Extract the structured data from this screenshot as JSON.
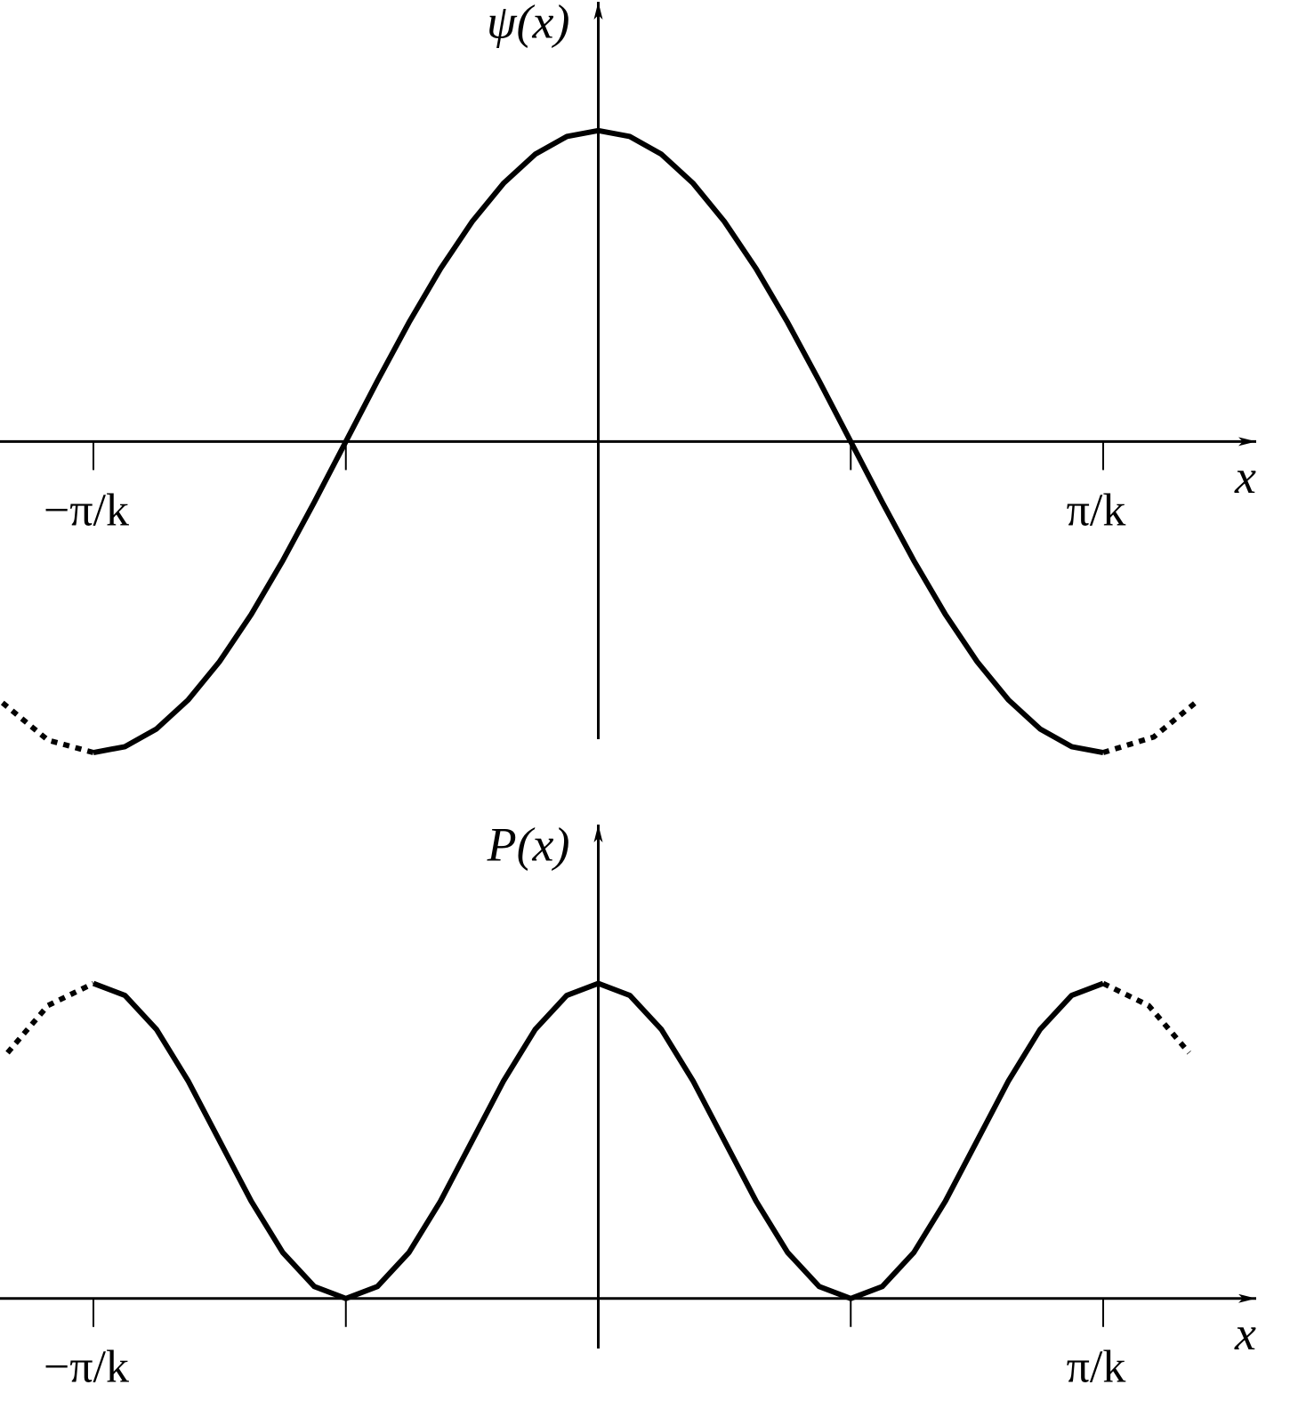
{
  "chart_data": [
    {
      "type": "line",
      "y_label": "ψ(x)",
      "x_label": "x",
      "xlim": [
        -1.185,
        1.37
      ],
      "ylim": [
        -1.1,
        1.42
      ],
      "xticks": [
        {
          "value": -1,
          "label": "−π/k"
        },
        {
          "value": 1,
          "label": "π/k"
        }
      ],
      "xticks_minor": [
        -0.5,
        0.5
      ],
      "series": [
        {
          "color": "#000000",
          "line_style": "solid",
          "x": [
            -1,
            -0.9375,
            -0.875,
            -0.8125,
            -0.75,
            -0.6875,
            -0.625,
            -0.5625,
            -0.5,
            -0.4375,
            -0.375,
            -0.3125,
            -0.25,
            -0.1875,
            -0.125,
            -0.0625,
            0,
            0.0625,
            0.125,
            0.1875,
            0.25,
            0.3125,
            0.375,
            0.4375,
            0.5,
            0.5625,
            0.625,
            0.6875,
            0.75,
            0.8125,
            0.875,
            0.9375,
            1
          ],
          "values": [
            -1,
            -0.981,
            -0.924,
            -0.831,
            -0.707,
            -0.556,
            -0.383,
            -0.195,
            0,
            0.195,
            0.383,
            0.556,
            0.707,
            0.831,
            0.924,
            0.981,
            1,
            0.981,
            0.924,
            0.831,
            0.707,
            0.556,
            0.383,
            0.195,
            0,
            -0.195,
            -0.383,
            -0.556,
            -0.707,
            -0.831,
            -0.924,
            -0.981,
            -1
          ]
        },
        {
          "color": "#000000",
          "line_style": "dotted",
          "x": [
            -1.18,
            -1.09,
            -1
          ],
          "values": [
            -0.84,
            -0.96,
            -1
          ]
        },
        {
          "color": "#000000",
          "line_style": "dotted",
          "x": [
            1,
            1.1,
            1.19
          ],
          "values": [
            -1,
            -0.95,
            -0.83
          ]
        }
      ]
    },
    {
      "type": "line",
      "y_label": "P(x)",
      "x_label": "x",
      "xlim": [
        -1.185,
        1.37
      ],
      "ylim": [
        -0.3,
        1.51
      ],
      "xticks": [
        {
          "value": -1,
          "label": "−π/k"
        },
        {
          "value": 1,
          "label": "π/k"
        }
      ],
      "xticks_minor": [
        -0.5,
        0.5
      ],
      "series": [
        {
          "color": "#000000",
          "line_style": "solid",
          "x": [
            -1,
            -0.9375,
            -0.875,
            -0.8125,
            -0.75,
            -0.6875,
            -0.625,
            -0.5625,
            -0.5,
            -0.4375,
            -0.375,
            -0.3125,
            -0.25,
            -0.1875,
            -0.125,
            -0.0625,
            0,
            0.0625,
            0.125,
            0.1875,
            0.25,
            0.3125,
            0.375,
            0.4375,
            0.5,
            0.5625,
            0.625,
            0.6875,
            0.75,
            0.8125,
            0.875,
            0.9375,
            1
          ],
          "values": [
            1,
            0.962,
            0.854,
            0.691,
            0.5,
            0.309,
            0.146,
            0.038,
            0,
            0.038,
            0.146,
            0.309,
            0.5,
            0.691,
            0.854,
            0.962,
            1,
            0.962,
            0.854,
            0.691,
            0.5,
            0.309,
            0.146,
            0.038,
            0,
            0.038,
            0.146,
            0.309,
            0.5,
            0.691,
            0.854,
            0.962,
            1
          ]
        },
        {
          "color": "#000000",
          "line_style": "dotted",
          "x": [
            -1.17,
            -1.09,
            -1
          ],
          "values": [
            0.78,
            0.93,
            1
          ]
        },
        {
          "color": "#000000",
          "line_style": "dotted",
          "x": [
            1,
            1.09,
            1.17
          ],
          "values": [
            1,
            0.93,
            0.78
          ]
        }
      ]
    }
  ]
}
